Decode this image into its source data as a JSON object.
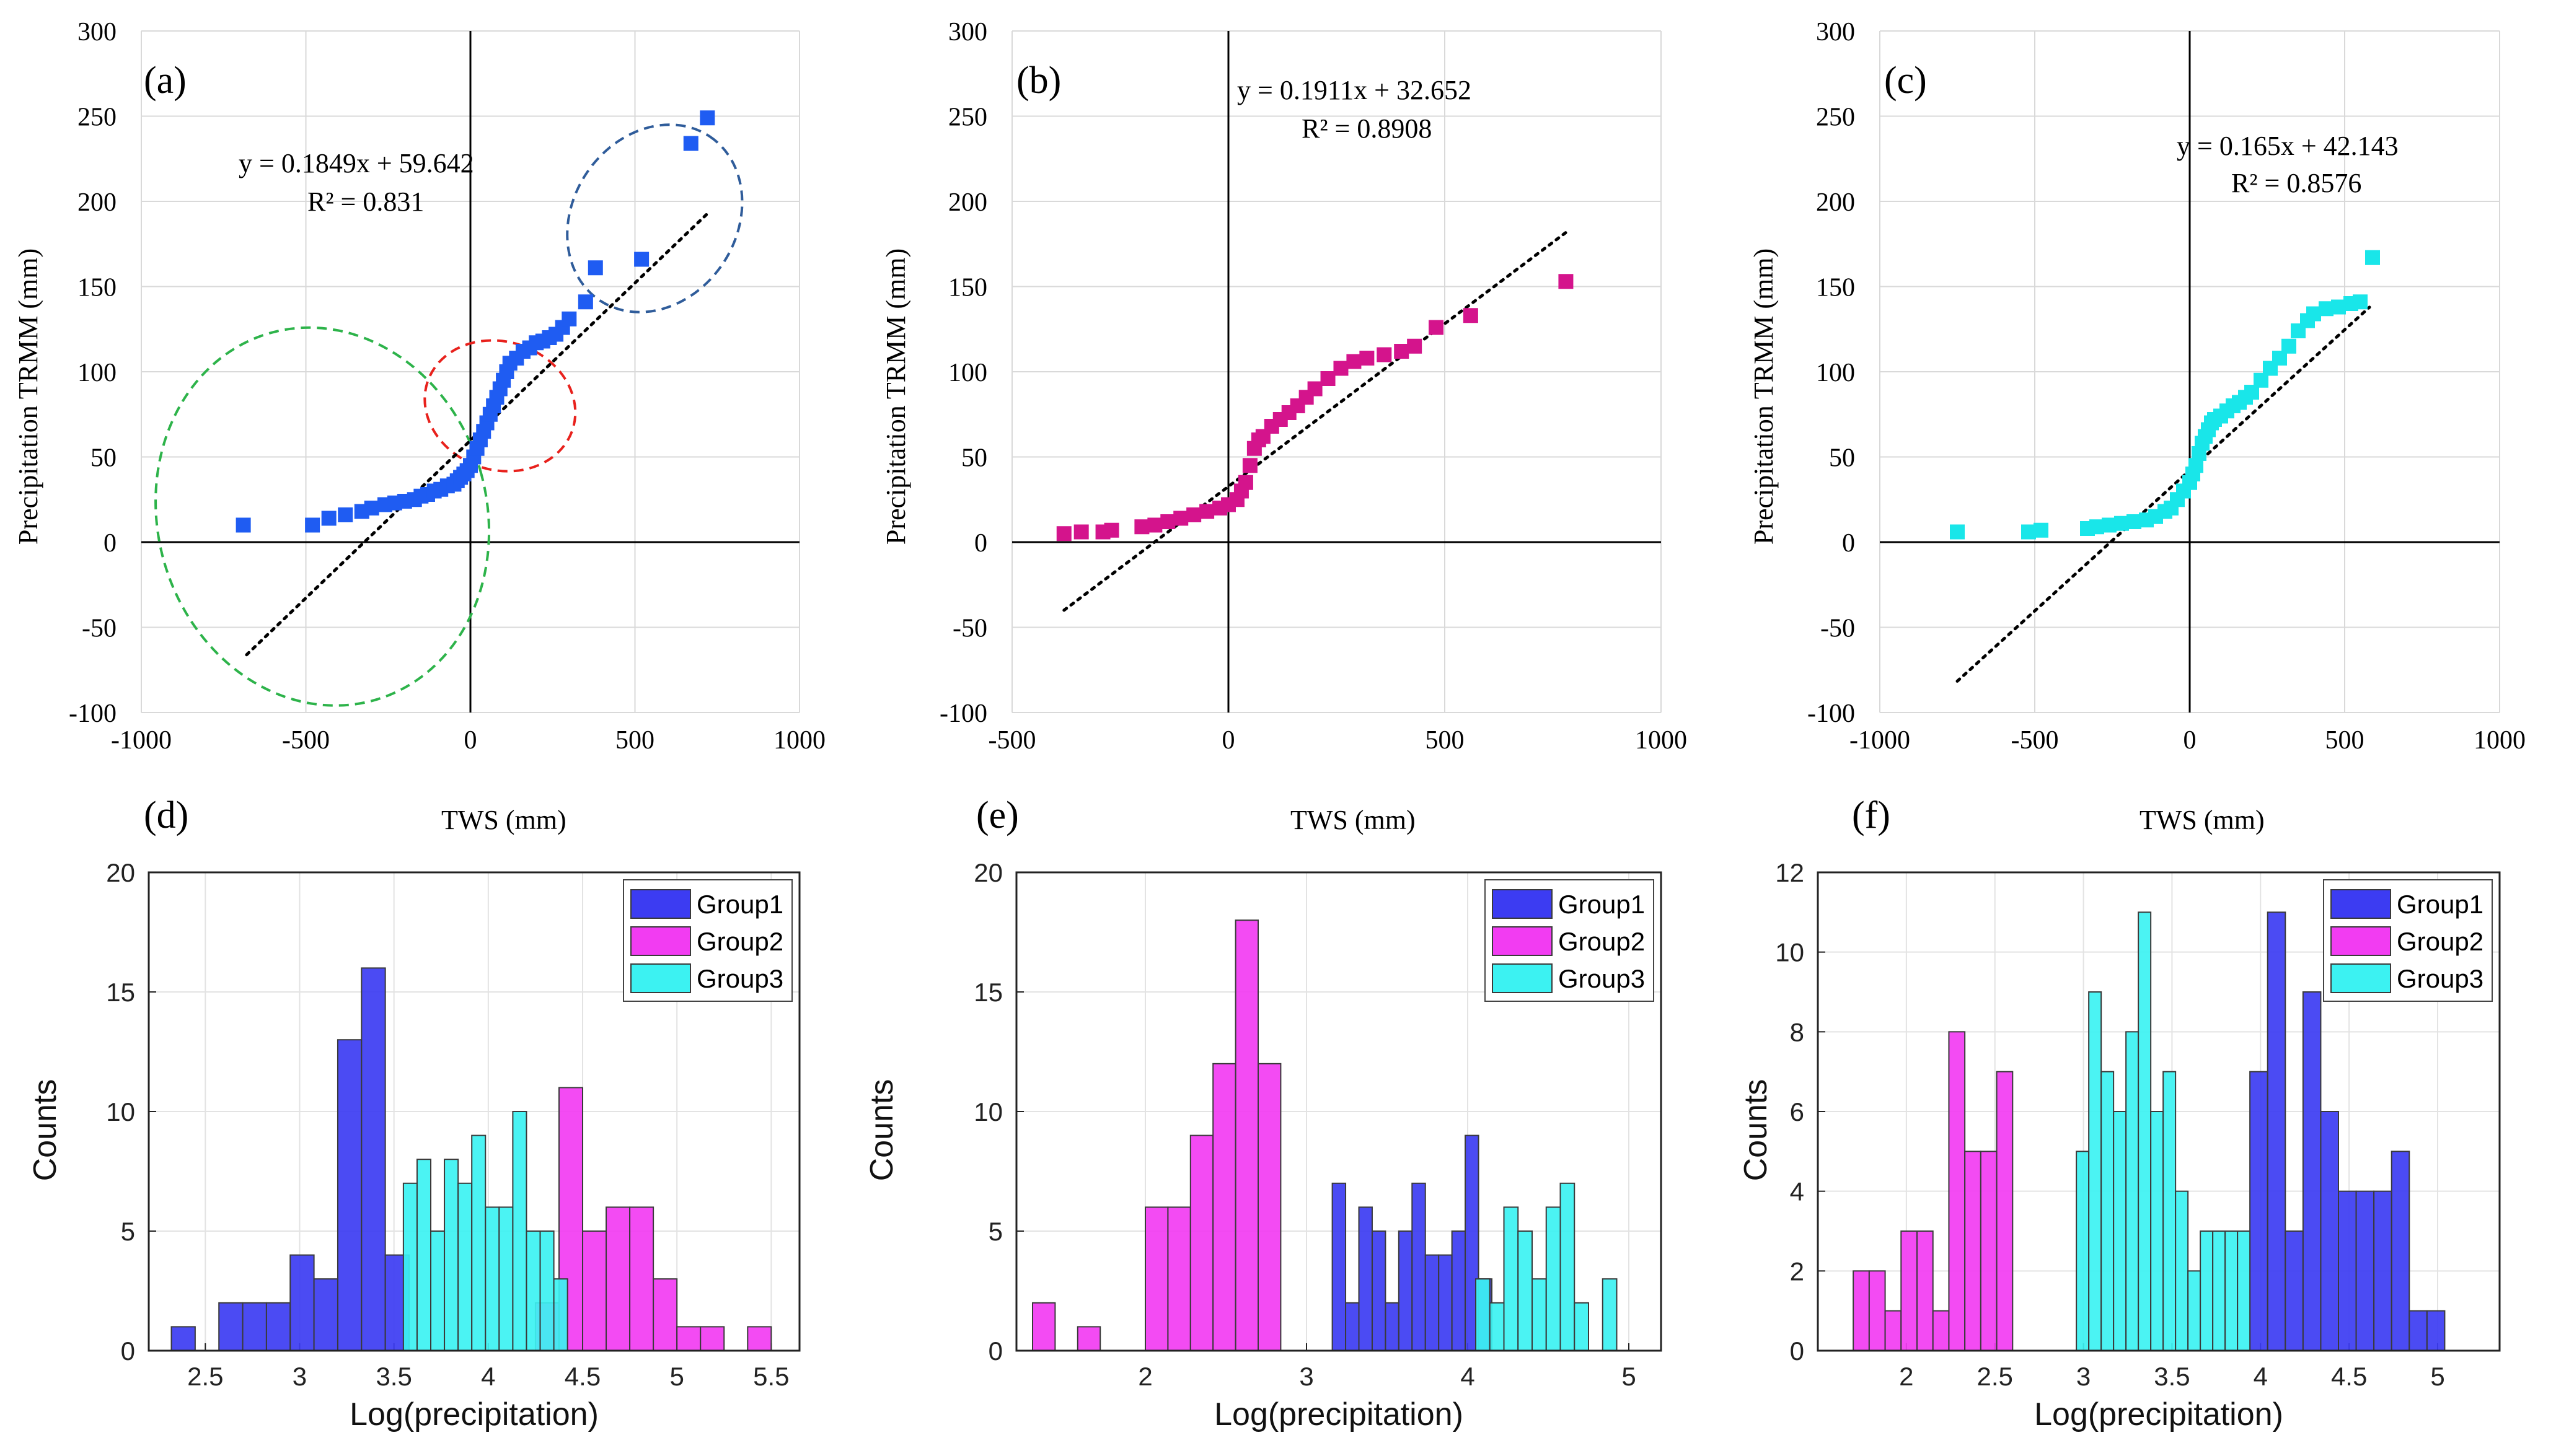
{
  "chart_data": [
    {
      "id": "a",
      "type": "scatter",
      "panel_label": "(a)",
      "xlabel": "TWS (mm)",
      "ylabel": "Precipitation TRMM (mm)",
      "xlim": [
        -1000,
        1000
      ],
      "ylim": [
        -100,
        300
      ],
      "xticks": [
        "-1000",
        "-500",
        "0",
        "500",
        "1000"
      ],
      "yticks": [
        "-100",
        "-50",
        "0",
        "50",
        "100",
        "150",
        "200",
        "250",
        "300"
      ],
      "equation": "y = 0.1849x + 59.642",
      "r2": "R² = 0.831",
      "color": "#1f5cf2",
      "x": [
        -690,
        -480,
        -430,
        -380,
        -330,
        -300,
        -260,
        -230,
        -200,
        -170,
        -150,
        -130,
        -110,
        -90,
        -70,
        -50,
        -40,
        -30,
        -20,
        -10,
        0,
        10,
        20,
        30,
        40,
        50,
        60,
        70,
        80,
        90,
        100,
        110,
        120,
        140,
        160,
        180,
        200,
        220,
        240,
        260,
        280,
        300,
        350,
        380,
        520,
        670,
        720
      ],
      "y": [
        10,
        10,
        14,
        16,
        18,
        20,
        22,
        23,
        24,
        25,
        27,
        28,
        30,
        31,
        33,
        34,
        36,
        38,
        40,
        42,
        45,
        50,
        55,
        60,
        65,
        70,
        75,
        80,
        85,
        90,
        95,
        100,
        105,
        108,
        112,
        114,
        117,
        118,
        120,
        122,
        126,
        131,
        141,
        161,
        166,
        234,
        249
      ],
      "trend": {
        "slope": 0.1849,
        "intercept": 59.642,
        "x_range": [
          -680,
          720
        ]
      },
      "ellipses": [
        {
          "color": "#2db34a",
          "cx": -450,
          "cy": 15,
          "rx": 500,
          "ry": 70,
          "angle_deg": 16
        },
        {
          "color": "#e8211c",
          "cx": 90,
          "cy": 80,
          "rx": 195,
          "ry": 28,
          "angle_deg": 72
        },
        {
          "color": "#2f5c9a",
          "cx": 560,
          "cy": 190,
          "rx": 300,
          "ry": 30,
          "angle_deg": 56
        }
      ]
    },
    {
      "id": "b",
      "type": "scatter",
      "panel_label": "(b)",
      "xlabel": "TWS (mm)",
      "ylabel": "Precipitation TRMM (mm)",
      "xlim": [
        -500,
        1000
      ],
      "ylim": [
        -100,
        300
      ],
      "xticks": [
        "-500",
        "0",
        "500",
        "1000"
      ],
      "yticks": [
        "-100",
        "-50",
        "0",
        "50",
        "100",
        "150",
        "200",
        "250",
        "300"
      ],
      "equation": "y = 0.1911x + 32.652",
      "r2": "R² = 0.8908",
      "color": "#d4148c",
      "x": [
        -380,
        -340,
        -290,
        -270,
        -200,
        -170,
        -140,
        -110,
        -80,
        -50,
        -20,
        0,
        20,
        30,
        40,
        50,
        60,
        70,
        80,
        100,
        120,
        140,
        160,
        180,
        200,
        230,
        260,
        290,
        320,
        360,
        400,
        430,
        480,
        560,
        780
      ],
      "y": [
        5,
        6,
        6,
        7,
        9,
        10,
        12,
        14,
        16,
        18,
        20,
        22,
        25,
        30,
        35,
        45,
        55,
        60,
        62,
        68,
        72,
        76,
        80,
        85,
        90,
        96,
        102,
        106,
        108,
        110,
        112,
        115,
        126,
        133,
        153
      ],
      "trend": {
        "slope": 0.1911,
        "intercept": 32.652,
        "x_range": [
          -380,
          780
        ]
      }
    },
    {
      "id": "c",
      "type": "scatter",
      "panel_label": "(c)",
      "xlabel": "TWS (mm)",
      "ylabel": "Precipitation TRMM (mm)",
      "xlim": [
        -1000,
        1000
      ],
      "ylim": [
        -100,
        300
      ],
      "xticks": [
        "-1000",
        "-500",
        "0",
        "500",
        "1000"
      ],
      "yticks": [
        "-100",
        "-50",
        "0",
        "50",
        "100",
        "150",
        "200",
        "250",
        "300"
      ],
      "equation": "y = 0.165x + 42.143",
      "r2": "R² = 0.8576",
      "color": "#19e6e9",
      "x": [
        -750,
        -520,
        -480,
        -330,
        -300,
        -260,
        -220,
        -180,
        -140,
        -110,
        -80,
        -60,
        -40,
        -20,
        0,
        10,
        20,
        30,
        40,
        50,
        60,
        70,
        80,
        100,
        120,
        140,
        160,
        180,
        200,
        230,
        260,
        290,
        320,
        350,
        380,
        400,
        440,
        480,
        520,
        550,
        590
      ],
      "y": [
        6,
        6,
        7,
        8,
        9,
        10,
        11,
        12,
        13,
        15,
        18,
        20,
        25,
        30,
        35,
        40,
        45,
        52,
        58,
        62,
        66,
        70,
        72,
        74,
        77,
        80,
        82,
        85,
        88,
        95,
        102,
        108,
        115,
        124,
        130,
        134,
        137,
        138,
        140,
        141,
        167
      ],
      "trend": {
        "slope": 0.165,
        "intercept": 42.143,
        "x_range": [
          -750,
          580
        ]
      }
    },
    {
      "id": "d",
      "type": "histogram",
      "panel_label": "(d)",
      "xlabel": "Log(precipitation)",
      "ylabel": "Counts",
      "xlim": [
        2.2,
        5.65
      ],
      "ylim": [
        0,
        20
      ],
      "xticks": [
        "2.5",
        "3",
        "3.5",
        "4",
        "4.5",
        "5",
        "5.5"
      ],
      "yticks": [
        "0",
        "5",
        "10",
        "15",
        "20"
      ],
      "legend": [
        "Group1",
        "Group2",
        "Group3"
      ],
      "colors": {
        "Group1": "#3c3cf2",
        "Group2": "#f23cf2",
        "Group3": "#3cf2f2"
      },
      "series": [
        {
          "name": "Group1",
          "bin_start": 2.32,
          "bin_width": 0.126,
          "counts": [
            1,
            0,
            2,
            2,
            2,
            4,
            3,
            13,
            16,
            4
          ]
        },
        {
          "name": "Group2",
          "bin_start": 4.25,
          "bin_width": 0.125,
          "counts": [
            2,
            11,
            5,
            6,
            6,
            3,
            1,
            1,
            0,
            1
          ]
        },
        {
          "name": "Group3",
          "bin_start": 3.55,
          "bin_width": 0.0725,
          "counts": [
            7,
            8,
            5,
            8,
            7,
            9,
            6,
            6,
            10,
            5,
            5,
            3
          ]
        }
      ]
    },
    {
      "id": "e",
      "type": "histogram",
      "panel_label": "(e)",
      "xlabel": "Log(precipitation)",
      "ylabel": "Counts",
      "xlim": [
        1.2,
        5.2
      ],
      "ylim": [
        0,
        20
      ],
      "xticks": [
        "2",
        "3",
        "4",
        "5"
      ],
      "yticks": [
        "0",
        "5",
        "10",
        "15",
        "20"
      ],
      "legend": [
        "Group1",
        "Group2",
        "Group3"
      ],
      "colors": {
        "Group1": "#3c3cf2",
        "Group2": "#f23cf2",
        "Group3": "#3cf2f2"
      },
      "series": [
        {
          "name": "Group1",
          "bin_start": 3.16,
          "bin_width": 0.0825,
          "counts": [
            7,
            2,
            6,
            5,
            2,
            5,
            7,
            4,
            4,
            5,
            9,
            3
          ]
        },
        {
          "name": "Group2",
          "bin_start": 1.3,
          "bin_width": 0.14,
          "counts": [
            2,
            0,
            1,
            0,
            0,
            6,
            6,
            9,
            12,
            18,
            12,
            0,
            0,
            0,
            0,
            0,
            0
          ]
        },
        {
          "name": "Group3",
          "bin_start": 4.05,
          "bin_width": 0.0875,
          "counts": [
            3,
            2,
            6,
            5,
            3,
            6,
            7,
            2,
            0,
            3
          ]
        }
      ]
    },
    {
      "id": "f",
      "type": "histogram",
      "panel_label": "(f)",
      "xlabel": "Log(precipitation)",
      "ylabel": "Counts",
      "xlim": [
        1.5,
        5.35
      ],
      "ylim": [
        0,
        12
      ],
      "xticks": [
        "2",
        "2.5",
        "3",
        "3.5",
        "4",
        "4.5",
        "5"
      ],
      "yticks": [
        "0",
        "2",
        "4",
        "6",
        "8",
        "10",
        "12"
      ],
      "legend": [
        "Group1",
        "Group2",
        "Group3"
      ],
      "colors": {
        "Group1": "#3c3cf2",
        "Group2": "#f23cf2",
        "Group3": "#3cf2f2"
      },
      "series": [
        {
          "name": "Group1",
          "bin_start": 3.94,
          "bin_width": 0.1,
          "counts": [
            7,
            11,
            3,
            9,
            6,
            4,
            4,
            4,
            5,
            1,
            1
          ]
        },
        {
          "name": "Group2",
          "bin_start": 1.7,
          "bin_width": 0.09,
          "counts": [
            2,
            2,
            1,
            3,
            3,
            1,
            8,
            5,
            5,
            7,
            0,
            0,
            0,
            0
          ]
        },
        {
          "name": "Group3",
          "bin_start": 2.96,
          "bin_width": 0.07,
          "counts": [
            5,
            9,
            7,
            6,
            8,
            11,
            6,
            7,
            4,
            2,
            3,
            3,
            3,
            3
          ]
        }
      ]
    }
  ]
}
